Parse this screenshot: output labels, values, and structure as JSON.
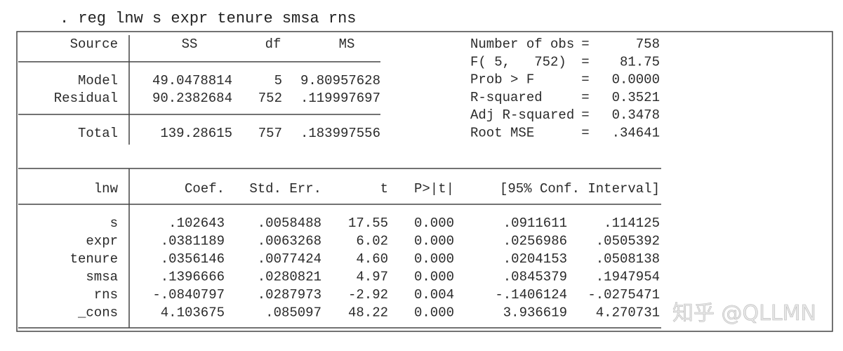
{
  "command": ". reg lnw s expr tenure smsa rns",
  "anova": {
    "headers": [
      "Source",
      "SS",
      "df",
      "MS"
    ],
    "rows": [
      {
        "source": "Model",
        "ss": "49.0478814",
        "df": "5",
        "ms": "9.80957628"
      },
      {
        "source": "Residual",
        "ss": "90.2382684",
        "df": "752",
        "ms": ".119997697"
      }
    ],
    "total": {
      "source": "Total",
      "ss": "139.28615",
      "df": "757",
      "ms": ".183997556"
    }
  },
  "stats": [
    {
      "label": "Number of obs",
      "eq": "=",
      "value": "758"
    },
    {
      "label": "F( 5,   752)",
      "eq": "=",
      "value": "81.75"
    },
    {
      "label": "Prob > F",
      "eq": "=",
      "value": "0.0000"
    },
    {
      "label": "R-squared",
      "eq": "=",
      "value": "0.3521"
    },
    {
      "label": "Adj R-squared",
      "eq": "=",
      "value": "0.3478"
    },
    {
      "label": "Root MSE",
      "eq": "=",
      "value": ".34641"
    }
  ],
  "coef_table": {
    "headers": [
      "lnw",
      "Coef.",
      "Std. Err.",
      "t",
      "P>|t|",
      "[95% Conf. Interval]"
    ],
    "rows": [
      [
        "s",
        ".102643",
        ".0058488",
        "17.55",
        "0.000",
        ".0911611",
        ".114125"
      ],
      [
        "expr",
        ".0381189",
        ".0063268",
        "6.02",
        "0.000",
        ".0256986",
        ".0505392"
      ],
      [
        "tenure",
        ".0356146",
        ".0077424",
        "4.60",
        "0.000",
        ".0204153",
        ".0508138"
      ],
      [
        "smsa",
        ".1396666",
        ".0280821",
        "4.97",
        "0.000",
        ".0845379",
        ".1947954"
      ],
      [
        "rns",
        "-.0840797",
        ".0287973",
        "-2.92",
        "0.004",
        "-.1406124",
        "-.0275471"
      ],
      [
        "_cons",
        "4.103675",
        ".085097",
        "48.22",
        "0.000",
        "3.936619",
        "4.270731"
      ]
    ]
  },
  "watermark": "知乎 @QLLMN"
}
